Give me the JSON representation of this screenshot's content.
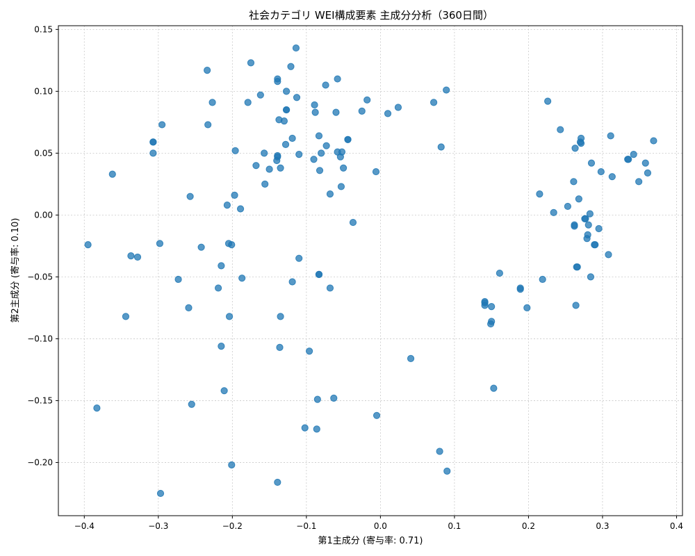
{
  "chart_data": {
    "type": "scatter",
    "title": "社会カテゴリ WEI構成要素 主成分分析（360日間）",
    "xlabel": "第1主成分 (寄与率: 0.71)",
    "ylabel": "第2主成分 (寄与率: 0.10)",
    "xlim": [
      -0.435,
      0.408
    ],
    "ylim": [
      -0.243,
      0.153
    ],
    "xticks": [
      -0.4,
      -0.3,
      -0.2,
      -0.1,
      0.0,
      0.1,
      0.2,
      0.3,
      0.4
    ],
    "xtick_labels": [
      "−0.4",
      "−0.3",
      "−0.2",
      "−0.1",
      "0.0",
      "0.1",
      "0.2",
      "0.3",
      "0.4"
    ],
    "yticks": [
      -0.2,
      -0.15,
      -0.1,
      -0.05,
      0.0,
      0.05,
      0.1,
      0.15
    ],
    "ytick_labels": [
      "−0.20",
      "−0.15",
      "−0.10",
      "−0.05",
      "0.00",
      "0.05",
      "0.10",
      "0.15"
    ],
    "grid": true,
    "point_color": "#1f77b4",
    "points": [
      [
        -0.395,
        -0.024
      ],
      [
        -0.383,
        -0.156
      ],
      [
        -0.362,
        0.033
      ],
      [
        -0.344,
        -0.082
      ],
      [
        -0.337,
        -0.033
      ],
      [
        -0.328,
        -0.034
      ],
      [
        -0.307,
        0.059
      ],
      [
        -0.307,
        0.059
      ],
      [
        -0.307,
        0.05
      ],
      [
        -0.298,
        -0.023
      ],
      [
        -0.297,
        -0.225
      ],
      [
        -0.295,
        0.073
      ],
      [
        -0.273,
        -0.052
      ],
      [
        -0.259,
        -0.075
      ],
      [
        -0.257,
        0.015
      ],
      [
        -0.255,
        -0.153
      ],
      [
        -0.242,
        -0.026
      ],
      [
        -0.234,
        0.117
      ],
      [
        -0.233,
        0.073
      ],
      [
        -0.227,
        0.091
      ],
      [
        -0.219,
        -0.059
      ],
      [
        -0.215,
        -0.041
      ],
      [
        -0.215,
        -0.106
      ],
      [
        -0.211,
        -0.142
      ],
      [
        -0.207,
        0.008
      ],
      [
        -0.205,
        -0.023
      ],
      [
        -0.204,
        -0.082
      ],
      [
        -0.201,
        -0.024
      ],
      [
        -0.201,
        -0.202
      ],
      [
        -0.197,
        0.016
      ],
      [
        -0.196,
        0.052
      ],
      [
        -0.189,
        0.005
      ],
      [
        -0.187,
        -0.051
      ],
      [
        -0.179,
        0.091
      ],
      [
        -0.175,
        0.123
      ],
      [
        -0.168,
        0.04
      ],
      [
        -0.162,
        0.097
      ],
      [
        -0.157,
        0.05
      ],
      [
        -0.156,
        0.025
      ],
      [
        -0.15,
        0.037
      ],
      [
        -0.14,
        0.044
      ],
      [
        -0.139,
        0.047
      ],
      [
        -0.139,
        0.048
      ],
      [
        -0.139,
        0.11
      ],
      [
        -0.139,
        0.108
      ],
      [
        -0.139,
        -0.216
      ],
      [
        -0.137,
        0.077
      ],
      [
        -0.136,
        -0.107
      ],
      [
        -0.135,
        0.038
      ],
      [
        -0.135,
        -0.082
      ],
      [
        -0.13,
        0.076
      ],
      [
        -0.128,
        0.057
      ],
      [
        -0.127,
        0.085
      ],
      [
        -0.127,
        0.085
      ],
      [
        -0.127,
        0.1
      ],
      [
        -0.121,
        0.12
      ],
      [
        -0.119,
        0.062
      ],
      [
        -0.119,
        -0.054
      ],
      [
        -0.114,
        0.135
      ],
      [
        -0.113,
        0.095
      ],
      [
        -0.11,
        0.049
      ],
      [
        -0.11,
        -0.035
      ],
      [
        -0.102,
        -0.172
      ],
      [
        -0.096,
        -0.11
      ],
      [
        -0.09,
        0.045
      ],
      [
        -0.089,
        0.089
      ],
      [
        -0.088,
        0.083
      ],
      [
        -0.086,
        -0.173
      ],
      [
        -0.085,
        -0.149
      ],
      [
        -0.083,
        -0.048
      ],
      [
        -0.083,
        -0.048
      ],
      [
        -0.083,
        0.064
      ],
      [
        -0.082,
        0.036
      ],
      [
        -0.08,
        0.05
      ],
      [
        -0.074,
        0.105
      ],
      [
        -0.073,
        0.056
      ],
      [
        -0.068,
        0.017
      ],
      [
        -0.068,
        -0.059
      ],
      [
        -0.063,
        -0.148
      ],
      [
        -0.06,
        0.083
      ],
      [
        -0.058,
        0.11
      ],
      [
        -0.058,
        0.051
      ],
      [
        -0.054,
        0.047
      ],
      [
        -0.053,
        0.023
      ],
      [
        -0.052,
        0.051
      ],
      [
        -0.05,
        0.038
      ],
      [
        -0.044,
        0.061
      ],
      [
        -0.044,
        0.061
      ],
      [
        -0.037,
        -0.006
      ],
      [
        -0.025,
        0.084
      ],
      [
        -0.018,
        0.093
      ],
      [
        -0.006,
        0.035
      ],
      [
        -0.005,
        -0.162
      ],
      [
        0.01,
        0.082
      ],
      [
        0.024,
        0.087
      ],
      [
        0.041,
        -0.116
      ],
      [
        0.072,
        0.091
      ],
      [
        0.08,
        -0.191
      ],
      [
        0.082,
        0.055
      ],
      [
        0.089,
        0.101
      ],
      [
        0.09,
        -0.207
      ],
      [
        0.141,
        -0.07
      ],
      [
        0.141,
        -0.071
      ],
      [
        0.141,
        -0.073
      ],
      [
        0.149,
        -0.088
      ],
      [
        0.15,
        -0.086
      ],
      [
        0.15,
        -0.074
      ],
      [
        0.153,
        -0.14
      ],
      [
        0.161,
        -0.047
      ],
      [
        0.189,
        -0.059
      ],
      [
        0.189,
        -0.06
      ],
      [
        0.198,
        -0.075
      ],
      [
        0.215,
        0.017
      ],
      [
        0.219,
        -0.052
      ],
      [
        0.226,
        0.092
      ],
      [
        0.234,
        0.002
      ],
      [
        0.243,
        0.069
      ],
      [
        0.253,
        0.007
      ],
      [
        0.261,
        0.027
      ],
      [
        0.262,
        -0.008
      ],
      [
        0.262,
        -0.009
      ],
      [
        0.263,
        0.054
      ],
      [
        0.264,
        -0.073
      ],
      [
        0.265,
        -0.042
      ],
      [
        0.266,
        -0.042
      ],
      [
        0.268,
        0.013
      ],
      [
        0.27,
        0.059
      ],
      [
        0.271,
        0.062
      ],
      [
        0.271,
        0.058
      ],
      [
        0.276,
        -0.003
      ],
      [
        0.277,
        -0.003
      ],
      [
        0.279,
        -0.019
      ],
      [
        0.28,
        -0.016
      ],
      [
        0.281,
        -0.008
      ],
      [
        0.283,
        0.001
      ],
      [
        0.284,
        -0.05
      ],
      [
        0.285,
        0.042
      ],
      [
        0.289,
        -0.024
      ],
      [
        0.29,
        -0.024
      ],
      [
        0.295,
        -0.011
      ],
      [
        0.298,
        0.035
      ],
      [
        0.308,
        -0.032
      ],
      [
        0.311,
        0.064
      ],
      [
        0.313,
        0.031
      ],
      [
        0.334,
        0.045
      ],
      [
        0.335,
        0.045
      ],
      [
        0.342,
        0.049
      ],
      [
        0.349,
        0.027
      ],
      [
        0.358,
        0.042
      ],
      [
        0.361,
        0.034
      ],
      [
        0.369,
        0.06
      ]
    ]
  }
}
